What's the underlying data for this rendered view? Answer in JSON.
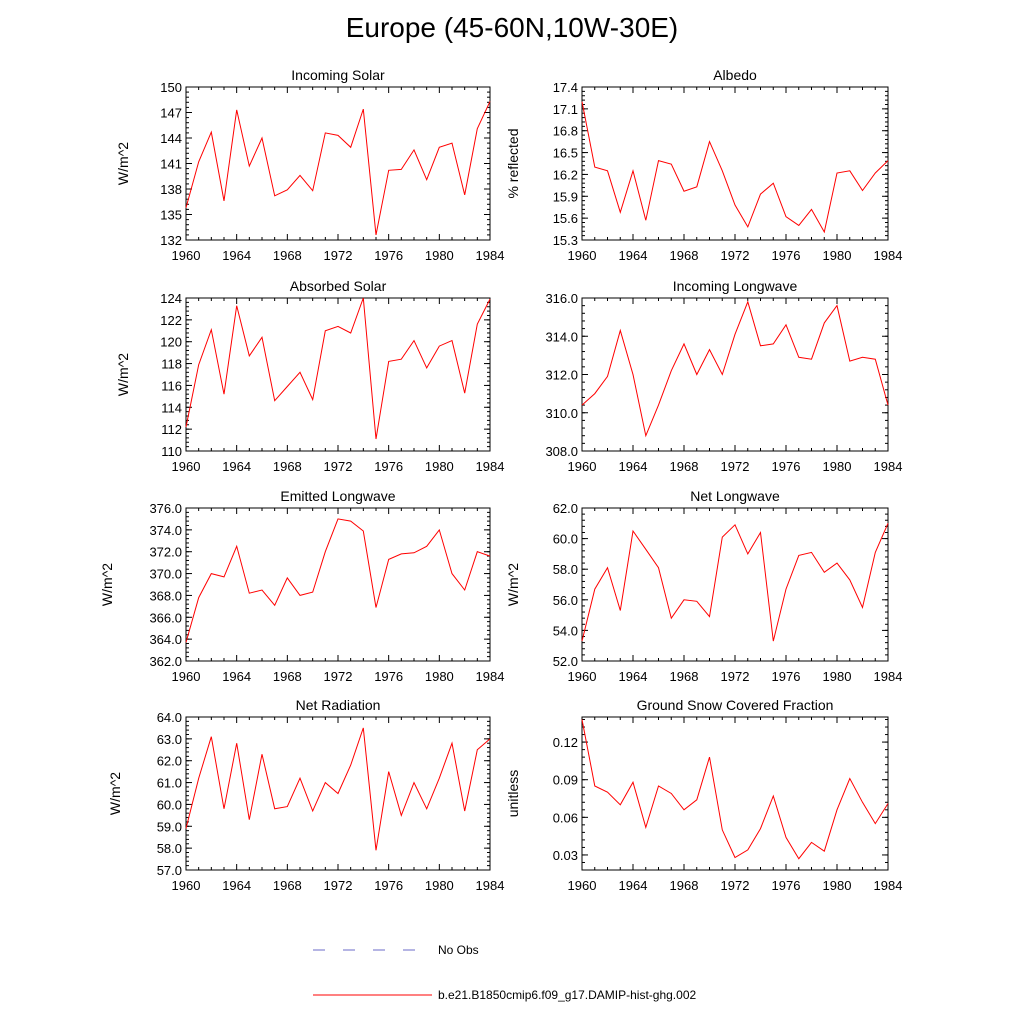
{
  "title": "Europe (45-60N,10W-30E)",
  "colors": {
    "model_line": "#ff0000",
    "obs_line": "#6b6bc8",
    "axis": "#000000"
  },
  "legend": {
    "entries": [
      {
        "label": "No Obs",
        "style": "dashed",
        "color": "#6b6bc8"
      },
      {
        "label": "b.e21.B1850cmip6.f09_g17.DAMIP-hist-ghg.002",
        "style": "solid",
        "color": "#ff0000"
      }
    ]
  },
  "chart_data": [
    {
      "type": "line",
      "title": "Incoming Solar",
      "xlabel": "",
      "ylabel": "W/m^2",
      "xlim": [
        1960,
        1984
      ],
      "ylim": [
        132,
        150
      ],
      "x_ticks": [
        "1960",
        "1964",
        "1968",
        "1972",
        "1976",
        "1980",
        "1984"
      ],
      "y_ticks": [
        "132",
        "135",
        "138",
        "141",
        "144",
        "147",
        "150"
      ],
      "series": [
        {
          "x": [
            1960,
            1961,
            1962,
            1963,
            1964,
            1965,
            1966,
            1967,
            1968,
            1969,
            1970,
            1971,
            1972,
            1973,
            1974,
            1975,
            1976,
            1977,
            1978,
            1979,
            1980,
            1981,
            1982,
            1983,
            1984
          ],
          "values": [
            135.8,
            141.2,
            144.7,
            136.6,
            147.3,
            140.7,
            144.0,
            137.2,
            137.9,
            139.6,
            137.8,
            144.6,
            144.3,
            142.9,
            147.4,
            132.6,
            140.2,
            140.3,
            142.6,
            139.1,
            142.9,
            143.4,
            137.3,
            145.1,
            148.3
          ]
        }
      ]
    },
    {
      "type": "line",
      "title": "Albedo",
      "xlabel": "",
      "ylabel": "% reflected",
      "xlim": [
        1960,
        1984
      ],
      "ylim": [
        15.3,
        17.4
      ],
      "x_ticks": [
        "1960",
        "1964",
        "1968",
        "1972",
        "1976",
        "1980",
        "1984"
      ],
      "y_ticks": [
        "15.3",
        "15.6",
        "15.9",
        "16.2",
        "16.5",
        "16.8",
        "17.1",
        "17.4"
      ],
      "series": [
        {
          "x": [
            1960,
            1961,
            1962,
            1963,
            1964,
            1965,
            1966,
            1967,
            1968,
            1969,
            1970,
            1971,
            1972,
            1973,
            1974,
            1975,
            1976,
            1977,
            1978,
            1979,
            1980,
            1981,
            1982,
            1983,
            1984
          ],
          "values": [
            17.2,
            16.3,
            16.25,
            15.68,
            16.25,
            15.57,
            16.39,
            16.34,
            15.97,
            16.03,
            16.65,
            16.25,
            15.78,
            15.48,
            15.93,
            16.08,
            15.62,
            15.5,
            15.72,
            15.41,
            16.22,
            16.25,
            15.98,
            16.22,
            16.39
          ]
        }
      ]
    },
    {
      "type": "line",
      "title": "Absorbed Solar",
      "xlabel": "",
      "ylabel": "W/m^2",
      "xlim": [
        1960,
        1984
      ],
      "ylim": [
        110,
        124
      ],
      "x_ticks": [
        "1960",
        "1964",
        "1968",
        "1972",
        "1976",
        "1980",
        "1984"
      ],
      "y_ticks": [
        "110",
        "112",
        "114",
        "116",
        "118",
        "120",
        "122",
        "124"
      ],
      "series": [
        {
          "x": [
            1960,
            1961,
            1962,
            1963,
            1964,
            1965,
            1966,
            1967,
            1968,
            1969,
            1970,
            1971,
            1972,
            1973,
            1974,
            1975,
            1976,
            1977,
            1978,
            1979,
            1980,
            1981,
            1982,
            1983,
            1984
          ],
          "values": [
            112.2,
            117.9,
            121.1,
            115.2,
            123.3,
            118.7,
            120.4,
            114.6,
            115.9,
            117.2,
            114.7,
            121.0,
            121.4,
            120.8,
            124.0,
            111.1,
            118.2,
            118.4,
            120.1,
            117.6,
            119.6,
            120.1,
            115.3,
            121.6,
            123.9
          ]
        }
      ]
    },
    {
      "type": "line",
      "title": "Incoming Longwave",
      "xlabel": "",
      "ylabel": "",
      "xlim": [
        1960,
        1984
      ],
      "ylim": [
        308,
        316
      ],
      "x_ticks": [
        "1960",
        "1964",
        "1968",
        "1972",
        "1976",
        "1980",
        "1984"
      ],
      "y_ticks": [
        "308.0",
        "310.0",
        "312.0",
        "314.0",
        "316.0"
      ],
      "series": [
        {
          "x": [
            1960,
            1961,
            1962,
            1963,
            1964,
            1965,
            1966,
            1967,
            1968,
            1969,
            1970,
            1971,
            1972,
            1973,
            1974,
            1975,
            1976,
            1977,
            1978,
            1979,
            1980,
            1981,
            1982,
            1983,
            1984
          ],
          "values": [
            310.4,
            311.0,
            311.9,
            314.3,
            312.0,
            308.8,
            310.4,
            312.2,
            313.6,
            312.0,
            313.3,
            312.0,
            314.1,
            315.8,
            313.5,
            313.6,
            314.6,
            312.9,
            312.8,
            314.7,
            315.6,
            312.7,
            312.9,
            312.8,
            310.4
          ]
        }
      ]
    },
    {
      "type": "line",
      "title": "Emitted Longwave",
      "xlabel": "",
      "ylabel": "W/m^2",
      "xlim": [
        1960,
        1984
      ],
      "ylim": [
        362,
        376
      ],
      "x_ticks": [
        "1960",
        "1964",
        "1968",
        "1972",
        "1976",
        "1980",
        "1984"
      ],
      "y_ticks": [
        "362.0",
        "364.0",
        "366.0",
        "368.0",
        "370.0",
        "372.0",
        "374.0",
        "376.0"
      ],
      "series": [
        {
          "x": [
            1960,
            1961,
            1962,
            1963,
            1964,
            1965,
            1966,
            1967,
            1968,
            1969,
            1970,
            1971,
            1972,
            1973,
            1974,
            1975,
            1976,
            1977,
            1978,
            1979,
            1980,
            1981,
            1982,
            1983,
            1984
          ],
          "values": [
            363.7,
            367.8,
            370.0,
            369.7,
            372.5,
            368.2,
            368.5,
            367.1,
            369.6,
            368.0,
            368.3,
            372.0,
            375.0,
            374.8,
            373.9,
            366.9,
            371.3,
            371.8,
            371.9,
            372.5,
            374.0,
            370.0,
            368.5,
            372.0,
            371.6
          ]
        }
      ]
    },
    {
      "type": "line",
      "title": "Net Longwave",
      "xlabel": "",
      "ylabel": "W/m^2",
      "xlim": [
        1960,
        1984
      ],
      "ylim": [
        52,
        62
      ],
      "x_ticks": [
        "1960",
        "1964",
        "1968",
        "1972",
        "1976",
        "1980",
        "1984"
      ],
      "y_ticks": [
        "52.0",
        "54.0",
        "56.0",
        "58.0",
        "60.0",
        "62.0"
      ],
      "series": [
        {
          "x": [
            1960,
            1961,
            1962,
            1963,
            1964,
            1965,
            1966,
            1967,
            1968,
            1969,
            1970,
            1971,
            1972,
            1973,
            1974,
            1975,
            1976,
            1977,
            1978,
            1979,
            1980,
            1981,
            1982,
            1983,
            1984
          ],
          "values": [
            53.3,
            56.7,
            58.1,
            55.3,
            60.5,
            59.3,
            58.1,
            54.8,
            56.0,
            55.9,
            54.9,
            60.1,
            60.9,
            59.0,
            60.4,
            53.3,
            56.7,
            58.9,
            59.1,
            57.8,
            58.4,
            57.3,
            55.5,
            59.1,
            61.0
          ]
        }
      ]
    },
    {
      "type": "line",
      "title": "Net Radiation",
      "xlabel": "",
      "ylabel": "W/m^2",
      "xlim": [
        1960,
        1984
      ],
      "ylim": [
        57,
        64
      ],
      "x_ticks": [
        "1960",
        "1964",
        "1968",
        "1972",
        "1976",
        "1980",
        "1984"
      ],
      "y_ticks": [
        "57.0",
        "58.0",
        "59.0",
        "60.0",
        "61.0",
        "62.0",
        "63.0",
        "64.0"
      ],
      "series": [
        {
          "x": [
            1960,
            1961,
            1962,
            1963,
            1964,
            1965,
            1966,
            1967,
            1968,
            1969,
            1970,
            1971,
            1972,
            1973,
            1974,
            1975,
            1976,
            1977,
            1978,
            1979,
            1980,
            1981,
            1982,
            1983,
            1984
          ],
          "values": [
            58.9,
            61.2,
            63.1,
            59.8,
            62.8,
            59.3,
            62.3,
            59.8,
            59.9,
            61.2,
            59.7,
            61.0,
            60.5,
            61.8,
            63.5,
            57.9,
            61.5,
            59.5,
            61.0,
            59.8,
            61.2,
            62.8,
            59.7,
            62.5,
            63.0
          ]
        }
      ]
    },
    {
      "type": "line",
      "title": "Ground Snow Covered Fraction",
      "xlabel": "",
      "ylabel": "unitless",
      "xlim": [
        1960,
        1984
      ],
      "ylim": [
        0.018,
        0.14
      ],
      "x_ticks": [
        "1960",
        "1964",
        "1968",
        "1972",
        "1976",
        "1980",
        "1984"
      ],
      "y_ticks": [
        "0.03",
        "0.06",
        "0.09",
        "0.12"
      ],
      "series": [
        {
          "x": [
            1960,
            1961,
            1962,
            1963,
            1964,
            1965,
            1966,
            1967,
            1968,
            1969,
            1970,
            1971,
            1972,
            1973,
            1974,
            1975,
            1976,
            1977,
            1978,
            1979,
            1980,
            1981,
            1982,
            1983,
            1984
          ],
          "values": [
            0.138,
            0.085,
            0.08,
            0.07,
            0.088,
            0.052,
            0.085,
            0.079,
            0.066,
            0.074,
            0.108,
            0.05,
            0.028,
            0.034,
            0.051,
            0.077,
            0.044,
            0.027,
            0.04,
            0.033,
            0.066,
            0.091,
            0.072,
            0.055,
            0.071
          ]
        }
      ]
    }
  ]
}
